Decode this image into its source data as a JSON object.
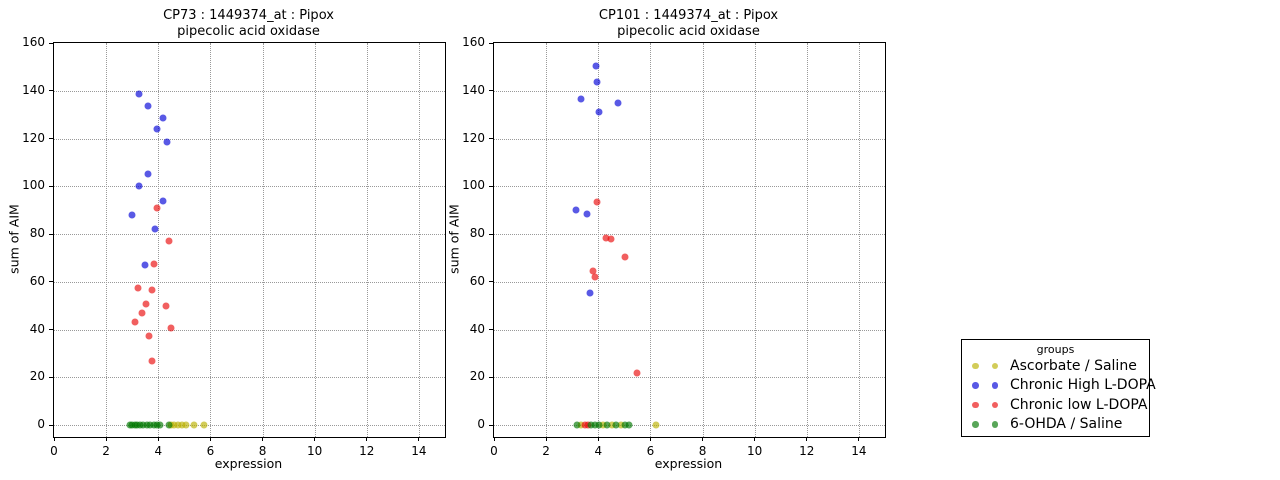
{
  "legend": {
    "title": "groups",
    "entries": [
      {
        "label": "Ascorbate / Saline",
        "color": "rgba(186,176,0,0.65)"
      },
      {
        "label": "Chronic High L-DOPA",
        "color": "rgba(0,0,215,0.65)"
      },
      {
        "label": "Chronic low L-DOPA",
        "color": "rgba(233,9,9,0.65)"
      },
      {
        "label": "6-OHDA / Saline",
        "color": "rgba(0,118,0,0.65)"
      }
    ]
  },
  "chart_data": [
    {
      "type": "scatter",
      "title": "CP73 : 1449374_at : Pipox",
      "subtitle": "pipecolic acid oxidase",
      "xlabel": "expression",
      "ylabel": "sum of AIM",
      "xlim": [
        0,
        15
      ],
      "ylim": [
        -5,
        160
      ],
      "xticks": [
        0,
        2,
        4,
        6,
        8,
        10,
        12,
        14
      ],
      "yticks": [
        0,
        20,
        40,
        60,
        80,
        100,
        120,
        140,
        160
      ],
      "grid": true,
      "legend_position": "outside-right",
      "series": [
        {
          "name": "Ascorbate / Saline",
          "color": "rgba(186,176,0,0.65)",
          "points": [
            [
              4.5,
              0
            ],
            [
              4.62,
              0
            ],
            [
              4.76,
              0
            ],
            [
              4.9,
              0
            ],
            [
              5.05,
              0
            ],
            [
              5.37,
              0
            ],
            [
              5.75,
              0
            ]
          ]
        },
        {
          "name": "Chronic High L-DOPA",
          "color": "rgba(0,0,215,0.65)",
          "points": [
            [
              3.25,
              138.5
            ],
            [
              3.6,
              133.5
            ],
            [
              4.2,
              128.5
            ],
            [
              3.95,
              124
            ],
            [
              4.33,
              118.5
            ],
            [
              3.62,
              105
            ],
            [
              3.28,
              100
            ],
            [
              4.18,
              94
            ],
            [
              3.01,
              88
            ],
            [
              3.88,
              82
            ],
            [
              3.51,
              67
            ]
          ]
        },
        {
          "name": "Chronic low L-DOPA",
          "color": "rgba(233,9,9,0.65)",
          "points": [
            [
              3.97,
              91
            ],
            [
              4.43,
              77
            ],
            [
              3.85,
              67.5
            ],
            [
              3.21,
              57.5
            ],
            [
              3.75,
              56.5
            ],
            [
              3.52,
              50.5
            ],
            [
              4.28,
              50
            ],
            [
              3.37,
              47
            ],
            [
              3.12,
              43
            ],
            [
              4.47,
              40.5
            ],
            [
              3.66,
              37.5
            ],
            [
              3.76,
              27
            ]
          ]
        },
        {
          "name": "6-OHDA / Saline",
          "color": "rgba(0,118,0,0.65)",
          "points": [
            [
              2.9,
              0
            ],
            [
              3.0,
              0
            ],
            [
              3.1,
              0
            ],
            [
              3.2,
              0
            ],
            [
              3.3,
              0
            ],
            [
              3.42,
              0
            ],
            [
              3.55,
              0
            ],
            [
              3.7,
              0
            ],
            [
              3.82,
              0
            ],
            [
              3.95,
              0
            ],
            [
              4.08,
              0
            ],
            [
              4.41,
              0
            ]
          ]
        }
      ]
    },
    {
      "type": "scatter",
      "title": "CP101 : 1449374_at : Pipox",
      "subtitle": "pipecolic acid oxidase",
      "xlabel": "expression",
      "ylabel": "sum of AIM",
      "xlim": [
        0,
        15
      ],
      "ylim": [
        -5,
        160
      ],
      "xticks": [
        0,
        2,
        4,
        6,
        8,
        10,
        12,
        14
      ],
      "yticks": [
        0,
        20,
        40,
        60,
        80,
        100,
        120,
        140,
        160
      ],
      "grid": true,
      "legend_position": "outside-right",
      "series": [
        {
          "name": "Ascorbate / Saline",
          "color": "rgba(186,176,0,0.65)",
          "points": [
            [
              3.34,
              0
            ],
            [
              4.19,
              0
            ],
            [
              4.53,
              0
            ],
            [
              4.88,
              0
            ],
            [
              6.21,
              0
            ]
          ]
        },
        {
          "name": "Chronic High L-DOPA",
          "color": "rgba(0,0,215,0.65)",
          "points": [
            [
              3.92,
              150.5
            ],
            [
              3.96,
              143.5
            ],
            [
              3.35,
              136.5
            ],
            [
              4.77,
              135
            ],
            [
              4.02,
              131
            ],
            [
              3.15,
              90
            ],
            [
              3.55,
              88.5
            ],
            [
              3.67,
              55.5
            ]
          ]
        },
        {
          "name": "Chronic low L-DOPA",
          "color": "rgba(233,9,9,0.65)",
          "points": [
            [
              3.97,
              93.5
            ],
            [
              4.3,
              78.5
            ],
            [
              4.48,
              78
            ],
            [
              5.04,
              70.5
            ],
            [
              3.81,
              64.5
            ],
            [
              3.88,
              62
            ],
            [
              5.49,
              22
            ],
            [
              3.5,
              0
            ],
            [
              3.62,
              0
            ]
          ]
        },
        {
          "name": "6-OHDA / Saline",
          "color": "rgba(0,118,0,0.65)",
          "points": [
            [
              3.18,
              0
            ],
            [
              3.72,
              0
            ],
            [
              3.87,
              0
            ],
            [
              4.02,
              0
            ],
            [
              4.35,
              0
            ],
            [
              4.69,
              0
            ],
            [
              5.03,
              0
            ],
            [
              5.18,
              0
            ]
          ]
        }
      ]
    }
  ]
}
